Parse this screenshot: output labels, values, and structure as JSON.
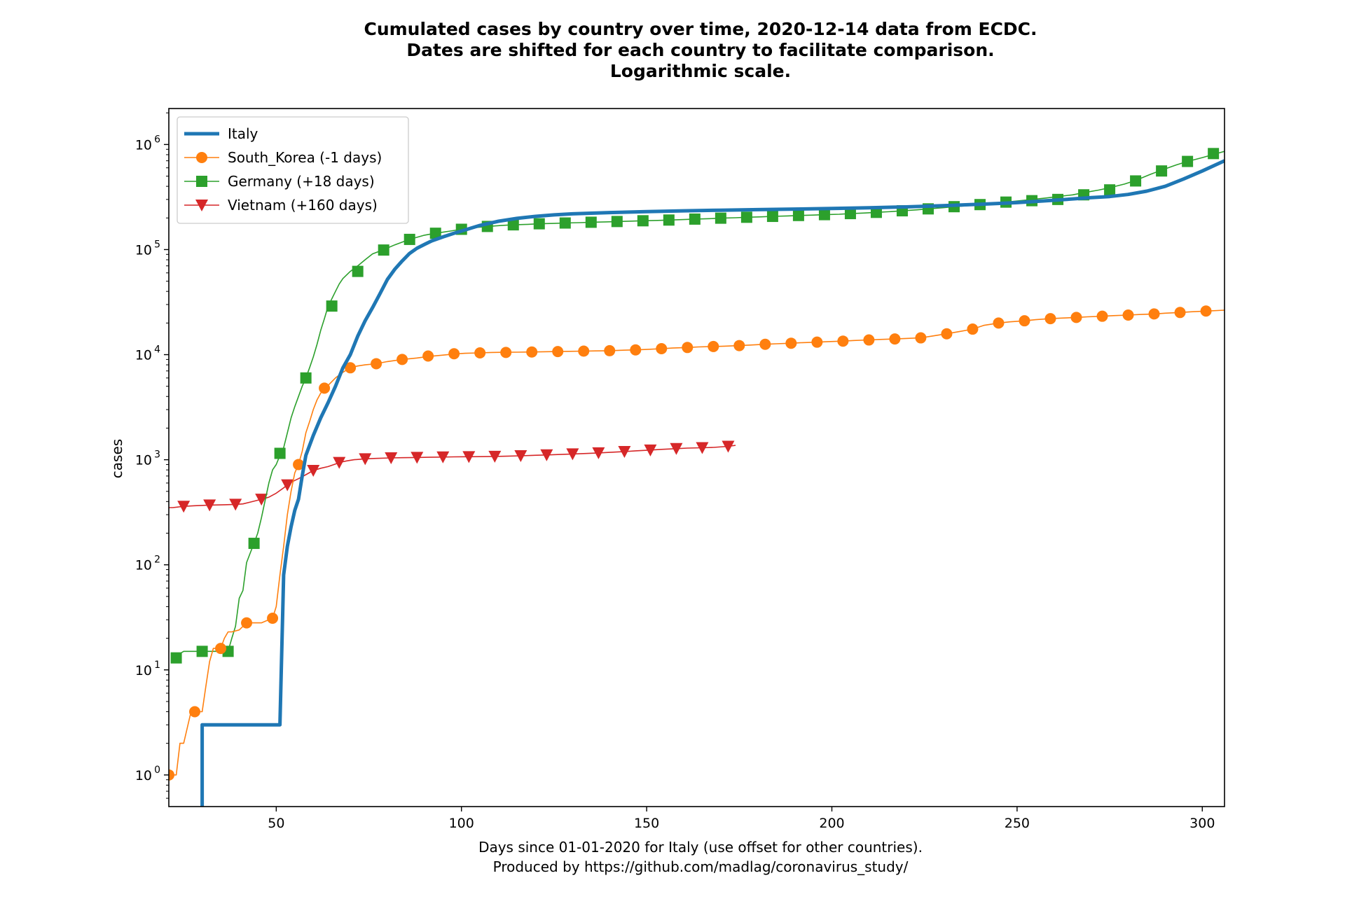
{
  "chart_data": {
    "type": "line",
    "title_lines": [
      "Cumulated cases by country over time, 2020-12-14 data from ECDC.",
      "Dates are shifted for each country to facilitate comparison.",
      "Logarithmic scale."
    ],
    "xlabel_lines": [
      "Days since 01-01-2020 for Italy (use offset for other countries).",
      "Produced by https://github.com/madlag/coronavirus_study/"
    ],
    "ylabel": "cases",
    "xscale": "linear",
    "yscale": "log",
    "xlim": [
      21,
      306
    ],
    "ylim": [
      0.5,
      2200000
    ],
    "xticks": [
      50,
      100,
      150,
      200,
      250,
      300
    ],
    "xtick_labels": [
      "50",
      "100",
      "150",
      "200",
      "250",
      "300"
    ],
    "yticks": [
      1,
      10,
      100,
      1000,
      10000,
      100000,
      1000000
    ],
    "ytick_labels": [
      {
        "base": "10",
        "exp": "0"
      },
      {
        "base": "10",
        "exp": "1"
      },
      {
        "base": "10",
        "exp": "2"
      },
      {
        "base": "10",
        "exp": "3"
      },
      {
        "base": "10",
        "exp": "4"
      },
      {
        "base": "10",
        "exp": "5"
      },
      {
        "base": "10",
        "exp": "6"
      }
    ],
    "legend_position": "top-left",
    "series": [
      {
        "name": "Italy",
        "color": "#1f77b4",
        "marker": "none",
        "x": [
          30,
          30,
          51,
          52,
          53,
          54,
          55,
          56,
          57,
          58,
          60,
          62,
          64,
          66,
          68,
          70,
          72,
          74,
          76,
          78,
          80,
          82,
          84,
          86,
          88,
          90,
          92,
          95,
          98,
          100,
          105,
          110,
          115,
          120,
          125,
          130,
          140,
          150,
          160,
          170,
          180,
          190,
          200,
          210,
          220,
          230,
          240,
          250,
          260,
          270,
          275,
          280,
          285,
          290,
          295,
          300,
          306
        ],
        "y": [
          0.5,
          3,
          3,
          80,
          150,
          230,
          330,
          420,
          700,
          1100,
          1700,
          2500,
          3500,
          5000,
          7500,
          10000,
          15000,
          21000,
          28000,
          38000,
          52000,
          65000,
          78000,
          92000,
          103000,
          112000,
          121000,
          132000,
          143000,
          150000,
          170000,
          186000,
          198000,
          207000,
          214000,
          219000,
          225000,
          230000,
          234000,
          237000,
          240000,
          243000,
          246000,
          250000,
          255000,
          262000,
          270000,
          280000,
          295000,
          312000,
          320000,
          335000,
          360000,
          400000,
          470000,
          560000,
          700000
        ]
      },
      {
        "name": "South_Korea (-1 days)",
        "color": "#ff7f0e",
        "marker": "circle",
        "x": [
          21,
          23,
          24,
          25,
          27,
          28,
          30,
          31,
          32,
          33,
          35,
          36,
          37,
          38,
          40,
          42,
          44,
          46,
          48,
          49,
          50,
          51,
          52,
          53,
          54,
          55,
          56,
          57,
          58,
          59,
          60,
          61,
          62,
          64,
          66,
          68,
          70,
          72,
          74,
          77,
          80,
          84,
          88,
          91,
          95,
          98,
          101,
          105,
          108,
          112,
          115,
          119,
          122,
          126,
          129,
          133,
          136,
          140,
          143,
          147,
          150,
          154,
          157,
          161,
          164,
          168,
          171,
          175,
          178,
          182,
          185,
          189,
          192,
          196,
          199,
          203,
          206,
          210,
          213,
          217,
          220,
          224,
          227,
          231,
          234,
          238,
          241,
          245,
          248,
          252,
          255,
          259,
          262,
          266,
          269,
          273,
          276,
          280,
          283,
          287,
          290,
          294,
          297,
          301,
          306
        ],
        "y": [
          1,
          1,
          2,
          2,
          4,
          4,
          4,
          7,
          12,
          16,
          16,
          20,
          23,
          23,
          24,
          28,
          28,
          28,
          30,
          31,
          40,
          80,
          150,
          300,
          500,
          750,
          900,
          1200,
          1800,
          2300,
          3000,
          3700,
          4300,
          5100,
          6000,
          6800,
          7500,
          7800,
          8000,
          8200,
          8600,
          9000,
          9300,
          9600,
          9900,
          10150,
          10300,
          10400,
          10500,
          10540,
          10560,
          10600,
          10650,
          10700,
          10750,
          10800,
          10850,
          10900,
          11000,
          11100,
          11200,
          11400,
          11550,
          11700,
          11850,
          11950,
          12050,
          12200,
          12350,
          12550,
          12700,
          12850,
          13000,
          13150,
          13300,
          13450,
          13650,
          13800,
          13950,
          14100,
          14250,
          14450,
          15000,
          15800,
          16500,
          17500,
          19000,
          20000,
          20500,
          21000,
          21500,
          22000,
          22300,
          22600,
          22900,
          23200,
          23500,
          23800,
          24100,
          24400,
          24800,
          25200,
          25600,
          26000,
          26500
        ],
        "marker_x": [
          21,
          28,
          35,
          42,
          49,
          56,
          63,
          70,
          77,
          84,
          91,
          98,
          105,
          112,
          119,
          126,
          133,
          140,
          147,
          154,
          161,
          168,
          175,
          182,
          189,
          196,
          203,
          210,
          217,
          224,
          231,
          238,
          245,
          252,
          259,
          266,
          273,
          280,
          287,
          294,
          301
        ],
        "marker_y": [
          1,
          4,
          16,
          28,
          31,
          900,
          4800,
          7500,
          8200,
          9000,
          9700,
          10200,
          10400,
          10500,
          10600,
          10700,
          10800,
          10900,
          11100,
          11400,
          11700,
          11950,
          12200,
          12550,
          12850,
          13150,
          13450,
          13800,
          14100,
          14450,
          15800,
          17500,
          20000,
          21000,
          22000,
          22600,
          23200,
          23800,
          24400,
          25200,
          26000
        ]
      },
      {
        "name": "Germany (+18 days)",
        "color": "#2ca02c",
        "marker": "square",
        "x": [
          22,
          25,
          30,
          33,
          36,
          37,
          38,
          39,
          40,
          41,
          42,
          43,
          44,
          45,
          46,
          47,
          48,
          49,
          50,
          51,
          52,
          53,
          54,
          55,
          56,
          57,
          58,
          59,
          60,
          61,
          62,
          63,
          64,
          65,
          66,
          67,
          68,
          70,
          72,
          74,
          76,
          79,
          82,
          86,
          90,
          93,
          97,
          100,
          104,
          107,
          111,
          114,
          118,
          121,
          125,
          128,
          132,
          135,
          139,
          142,
          146,
          149,
          153,
          156,
          160,
          163,
          167,
          170,
          174,
          177,
          181,
          184,
          188,
          191,
          195,
          198,
          202,
          205,
          209,
          212,
          216,
          219,
          223,
          226,
          230,
          233,
          237,
          240,
          244,
          247,
          251,
          254,
          258,
          261,
          265,
          268,
          272,
          275,
          279,
          282,
          286,
          289,
          293,
          296,
          300,
          306
        ],
        "y": [
          13,
          15,
          15,
          15,
          15,
          15,
          20,
          26,
          48,
          57,
          105,
          130,
          160,
          200,
          280,
          410,
          600,
          800,
          900,
          1100,
          1300,
          1800,
          2500,
          3200,
          4000,
          5000,
          6000,
          7500,
          9500,
          12500,
          17000,
          22000,
          29000,
          34000,
          40000,
          47000,
          53000,
          62000,
          70000,
          80000,
          91000,
          100000,
          111000,
          125000,
          137000,
          143000,
          150000,
          156000,
          162000,
          166000,
          170000,
          172000,
          174000,
          176000,
          177500,
          179000,
          180500,
          182000,
          183500,
          185000,
          186500,
          188000,
          189500,
          191000,
          193000,
          195000,
          197000,
          199000,
          201000,
          203000,
          205000,
          207000,
          209000,
          211000,
          213000,
          215000,
          217000,
          220000,
          223000,
          226000,
          230000,
          234000,
          239000,
          244000,
          250000,
          256000,
          262000,
          268000,
          275000,
          283000,
          292000,
          300000,
          310000,
          320000,
          332000,
          348000,
          368000,
          388000,
          420000,
          455000,
          520000,
          570000,
          640000,
          690000,
          750000,
          860000
        ],
        "marker_x": [
          23,
          30,
          37,
          44,
          51,
          58,
          65,
          72,
          79,
          86,
          93,
          100,
          107,
          114,
          121,
          128,
          135,
          142,
          149,
          156,
          163,
          170,
          177,
          184,
          191,
          198,
          205,
          212,
          219,
          226,
          233,
          240,
          247,
          254,
          261,
          268,
          275,
          282,
          289,
          296,
          303
        ],
        "marker_y": [
          13,
          15,
          15,
          160,
          1150,
          6000,
          29000,
          62000,
          99000,
          125000,
          143000,
          156000,
          166000,
          172000,
          176000,
          179000,
          182000,
          185000,
          188000,
          191000,
          195000,
          199000,
          203000,
          207000,
          211000,
          215000,
          220000,
          226000,
          234000,
          244000,
          256000,
          268000,
          283000,
          292000,
          300000,
          332000,
          370000,
          450000,
          560000,
          690000,
          820000
        ]
      },
      {
        "name": "Vietnam (+160 days)",
        "color": "#d62728",
        "marker": "triangle_down",
        "x": [
          21,
          22,
          25,
          28,
          32,
          36,
          39,
          41,
          43,
          46,
          48,
          50,
          52,
          53,
          54,
          56,
          58,
          60,
          62,
          64,
          66,
          67,
          69,
          71,
          74,
          77,
          81,
          84,
          88,
          91,
          95,
          98,
          102,
          105,
          109,
          112,
          116,
          119,
          123,
          126,
          130,
          133,
          137,
          140,
          144,
          147,
          151,
          154,
          158,
          161,
          165,
          168,
          172,
          174
        ],
        "y": [
          350,
          350,
          360,
          365,
          370,
          373,
          376,
          380,
          395,
          420,
          440,
          480,
          540,
          575,
          610,
          660,
          720,
          790,
          830,
          860,
          910,
          940,
          975,
          1000,
          1020,
          1030,
          1040,
          1045,
          1050,
          1055,
          1060,
          1065,
          1068,
          1070,
          1075,
          1080,
          1090,
          1100,
          1110,
          1120,
          1135,
          1145,
          1160,
          1175,
          1195,
          1215,
          1235,
          1255,
          1275,
          1290,
          1300,
          1310,
          1340,
          1370
        ],
        "marker_x": [
          25,
          32,
          39,
          46,
          53,
          60,
          67,
          74,
          81,
          88,
          95,
          102,
          109,
          116,
          123,
          130,
          137,
          144,
          151,
          158,
          165,
          172
        ],
        "marker_y": [
          360,
          370,
          376,
          420,
          575,
          790,
          940,
          1020,
          1040,
          1050,
          1060,
          1068,
          1075,
          1090,
          1110,
          1135,
          1160,
          1195,
          1235,
          1275,
          1300,
          1340
        ]
      }
    ]
  }
}
